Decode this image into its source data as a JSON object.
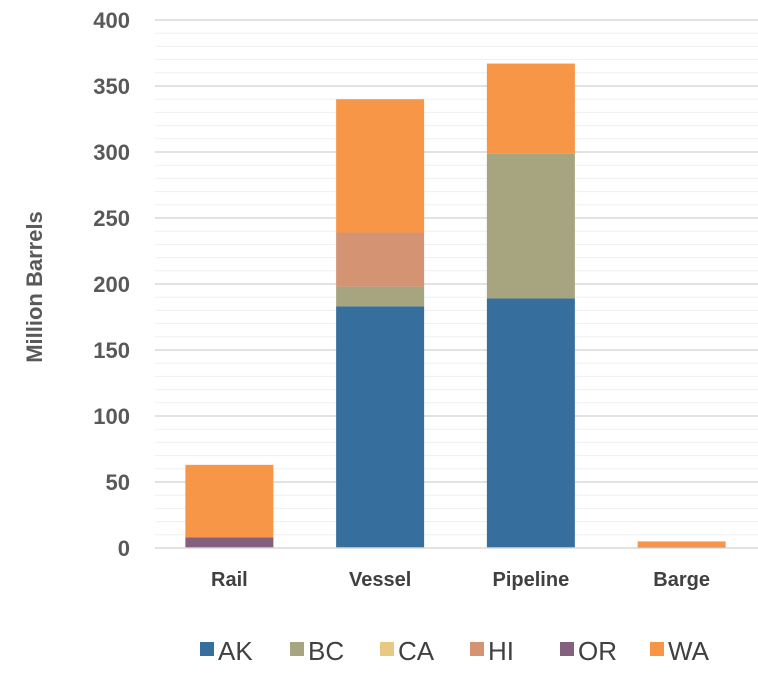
{
  "chart_data": {
    "type": "bar",
    "stacked": true,
    "categories": [
      "Rail",
      "Vessel",
      "Pipeline",
      "Barge"
    ],
    "ylabel": "Million Barrels",
    "ylim": [
      0,
      400
    ],
    "yticks": [
      0,
      50,
      100,
      150,
      200,
      250,
      300,
      350,
      400
    ],
    "grid": true,
    "legend_position": "bottom",
    "series": [
      {
        "name": "AK",
        "color": "#366f9e",
        "values": [
          0,
          183,
          189,
          0
        ]
      },
      {
        "name": "BC",
        "color": "#a6a57f",
        "values": [
          0,
          15,
          110,
          0
        ]
      },
      {
        "name": "CA",
        "color": "#e7c984",
        "values": [
          0,
          0,
          0,
          0
        ]
      },
      {
        "name": "HI",
        "color": "#d49373",
        "values": [
          0,
          41,
          0,
          0
        ]
      },
      {
        "name": "OR",
        "color": "#84607f",
        "values": [
          8,
          0,
          0,
          1
        ]
      },
      {
        "name": "WA",
        "color": "#f79646",
        "values": [
          55,
          101,
          68,
          4
        ]
      }
    ]
  }
}
